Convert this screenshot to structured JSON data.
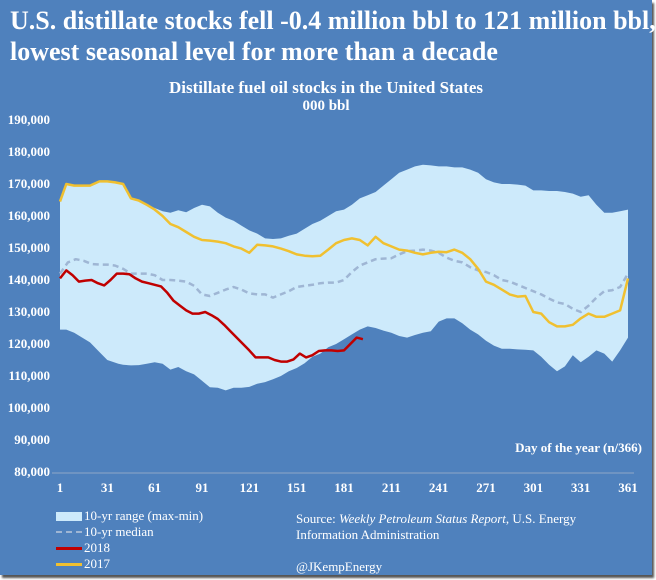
{
  "title": {
    "line1": "U.S. distillate stocks fell -0.4 million bbl to 121 million bbl,",
    "line2": "lowest seasonal level for more than a decade"
  },
  "colors": {
    "background": "#4f81bd",
    "range_fill": "#cdeafb",
    "median": "#9fb6d4",
    "y2018": "#c00000",
    "y2017": "#f0c030"
  },
  "chart_data": {
    "type": "area",
    "title": "Distillate fuel oil stocks in the United States",
    "subtitle": "000 bbl",
    "xlabel": "Day of the year (n/366)",
    "ylabel": "",
    "xlim": [
      1,
      366
    ],
    "ylim": [
      80000,
      190000
    ],
    "grid": false,
    "legend_position": "bottom-left",
    "x_ticks": [
      1,
      31,
      61,
      91,
      121,
      151,
      181,
      211,
      241,
      271,
      301,
      331,
      361
    ],
    "y_ticks": [
      80000,
      90000,
      100000,
      110000,
      120000,
      130000,
      140000,
      150000,
      160000,
      170000,
      180000,
      190000
    ],
    "y_tick_labels": [
      "80,000",
      "90,000",
      "100,000",
      "110,000",
      "120,000",
      "130,000",
      "140,000",
      "150,000",
      "160,000",
      "170,000",
      "180,000",
      "190,000"
    ],
    "band": {
      "name": "10-yr range (max-min)",
      "x": [
        1,
        5,
        10,
        20,
        26,
        31,
        38,
        41,
        46,
        51,
        56,
        61,
        66,
        71,
        76,
        81,
        86,
        91,
        96,
        101,
        106,
        111,
        116,
        121,
        126,
        131,
        136,
        141,
        146,
        151,
        156,
        161,
        166,
        171,
        176,
        181,
        186,
        191,
        196,
        201,
        206,
        211,
        216,
        221,
        226,
        231,
        236,
        241,
        246,
        251,
        256,
        261,
        266,
        271,
        276,
        281,
        286,
        291,
        296,
        301,
        306,
        311,
        316,
        321,
        326,
        331,
        336,
        341,
        346,
        351,
        356,
        361
      ],
      "max": [
        164500,
        170000,
        169500,
        169500,
        170800,
        170800,
        170500,
        170000,
        165500,
        164800,
        163500,
        162500,
        161500,
        161000,
        161800,
        161200,
        162500,
        163500,
        163000,
        161000,
        159500,
        158500,
        157000,
        155500,
        154500,
        153000,
        152800,
        153000,
        153800,
        154500,
        156000,
        157500,
        158500,
        160000,
        161500,
        162000,
        163500,
        165500,
        166500,
        167500,
        169500,
        171500,
        173500,
        174500,
        175500,
        176000,
        175800,
        175500,
        175500,
        175200,
        175200,
        174500,
        173500,
        171500,
        170500,
        170000,
        170000,
        169800,
        169500,
        168000,
        168000,
        167800,
        167800,
        167500,
        167000,
        166000,
        166500,
        163500,
        161000,
        161000,
        161500,
        162000
      ],
      "min": [
        124500,
        124500,
        123500,
        120500,
        117500,
        115000,
        113800,
        113500,
        113300,
        113400,
        113800,
        114300,
        113800,
        112000,
        112800,
        111500,
        110500,
        108500,
        106500,
        106300,
        105500,
        106300,
        106300,
        106600,
        107600,
        108100,
        109000,
        110000,
        111500,
        112500,
        114000,
        116000,
        117000,
        119000,
        120000,
        121500,
        123000,
        124500,
        125500,
        125000,
        124200,
        123500,
        122500,
        122000,
        122800,
        123500,
        124000,
        127000,
        128000,
        128000,
        126500,
        124500,
        123000,
        121000,
        119500,
        118500,
        118500,
        118300,
        118200,
        118000,
        116000,
        113500,
        111500,
        113000,
        116500,
        114300,
        116000,
        118000,
        117000,
        114500,
        118000,
        122000
      ]
    },
    "series": [
      {
        "name": "10-yr median",
        "style": "dashed",
        "x": [
          1,
          6,
          11,
          16,
          21,
          26,
          31,
          36,
          41,
          46,
          51,
          56,
          61,
          66,
          71,
          76,
          81,
          86,
          91,
          96,
          101,
          106,
          111,
          116,
          121,
          126,
          131,
          136,
          141,
          146,
          151,
          156,
          161,
          166,
          171,
          176,
          181,
          186,
          191,
          196,
          201,
          206,
          211,
          216,
          221,
          226,
          231,
          236,
          241,
          246,
          251,
          256,
          261,
          266,
          271,
          276,
          281,
          286,
          291,
          296,
          301,
          306,
          311,
          316,
          321,
          326,
          331,
          336,
          341,
          346,
          351,
          356,
          361
        ],
        "values": [
          142000,
          145500,
          146500,
          146000,
          145000,
          144800,
          144800,
          144500,
          143500,
          142000,
          142000,
          142000,
          141500,
          140000,
          140000,
          139800,
          139500,
          138200,
          135500,
          135000,
          136000,
          137000,
          137800,
          137000,
          135800,
          135500,
          135500,
          134500,
          135500,
          136500,
          137800,
          138200,
          138500,
          139000,
          139200,
          139200,
          140000,
          142500,
          144500,
          145500,
          146500,
          146700,
          146800,
          148000,
          149000,
          149200,
          149500,
          149200,
          148500,
          147000,
          146000,
          145500,
          144000,
          143000,
          142500,
          141500,
          140000,
          139500,
          138500,
          137500,
          136500,
          135500,
          134200,
          133000,
          132500,
          131000,
          130000,
          132000,
          134500,
          136500,
          136800,
          137800,
          142000
        ]
      },
      {
        "name": "2018",
        "style": "solid",
        "x": [
          1,
          5,
          9,
          13,
          17,
          21,
          25,
          29,
          33,
          37,
          41,
          45,
          49,
          53,
          57,
          61,
          65,
          69,
          73,
          77,
          81,
          85,
          89,
          93,
          97,
          101,
          105,
          109,
          113,
          117,
          121,
          125,
          129,
          133,
          137,
          141,
          145,
          149,
          153,
          157,
          161,
          165,
          169,
          173,
          177,
          181,
          185,
          189,
          193
        ],
        "values": [
          140500,
          143000,
          141500,
          139500,
          139800,
          140000,
          139000,
          138300,
          140000,
          142000,
          142000,
          141800,
          140500,
          139500,
          139000,
          138500,
          138000,
          136000,
          133500,
          132000,
          130500,
          129500,
          129500,
          130000,
          129000,
          127800,
          126000,
          124000,
          122000,
          120000,
          118000,
          115800,
          115800,
          115800,
          115000,
          114500,
          114500,
          115200,
          117000,
          115800,
          116500,
          117800,
          118000,
          118000,
          117800,
          118000,
          120000,
          122000,
          121500
        ]
      },
      {
        "name": "2017",
        "style": "solid",
        "x": [
          1,
          5,
          10,
          15,
          20,
          26,
          31,
          36,
          41,
          46,
          51,
          56,
          61,
          66,
          71,
          76,
          81,
          86,
          91,
          96,
          101,
          106,
          111,
          116,
          121,
          126,
          131,
          136,
          141,
          146,
          151,
          156,
          161,
          166,
          171,
          176,
          181,
          186,
          191,
          196,
          201,
          206,
          211,
          216,
          221,
          226,
          231,
          236,
          241,
          246,
          251,
          256,
          261,
          266,
          271,
          276,
          281,
          286,
          291,
          296,
          301,
          306,
          311,
          316,
          321,
          326,
          331,
          336,
          341,
          346,
          351,
          356,
          361
        ],
        "values": [
          164500,
          170000,
          169500,
          169500,
          169500,
          170800,
          170800,
          170500,
          170000,
          165500,
          164800,
          163500,
          162000,
          160000,
          157500,
          156500,
          155000,
          153500,
          152500,
          152300,
          152000,
          151500,
          150500,
          149800,
          148500,
          151000,
          150800,
          150500,
          149800,
          149000,
          148000,
          147600,
          147400,
          147600,
          149500,
          151500,
          152500,
          153000,
          152500,
          150800,
          153500,
          151500,
          150500,
          149500,
          149200,
          148500,
          148000,
          148500,
          148800,
          148700,
          149500,
          148500,
          146500,
          143500,
          139500,
          138500,
          137000,
          135500,
          134800,
          135000,
          130000,
          129500,
          126800,
          125500,
          125500,
          126000,
          128000,
          129500,
          128500,
          128500,
          129500,
          130500,
          140500
        ]
      }
    ]
  },
  "legend": {
    "range_label": "10-yr range (max-min)",
    "median_label": "10-yr median",
    "y2018_label": "2018",
    "y2017_label": "2017"
  },
  "source": {
    "prefix": "Source: ",
    "italic": "Weekly Petroleum Status Report",
    "suffix": ", U.S. Energy Information Administration"
  },
  "handle": "@JKempEnergy"
}
